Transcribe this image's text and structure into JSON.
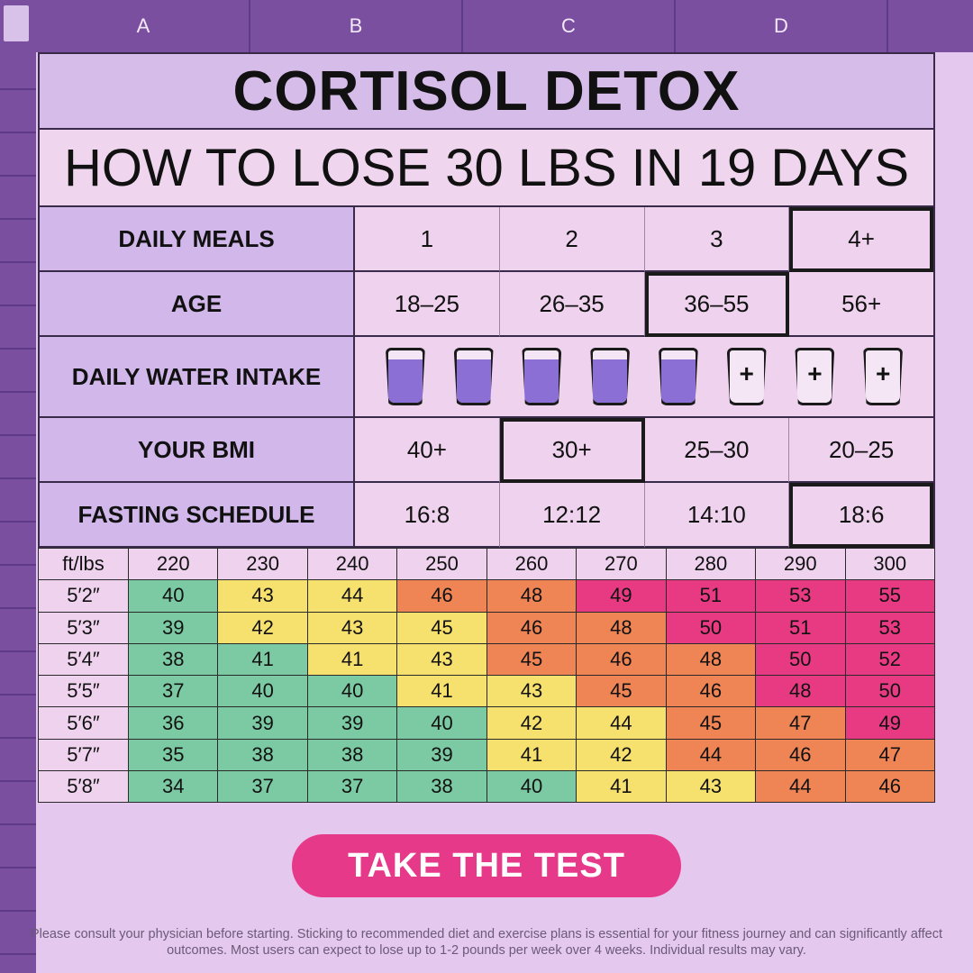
{
  "spreadsheet": {
    "columns": [
      "A",
      "B",
      "C",
      "D"
    ]
  },
  "header": {
    "title": "CORTISOL DETOX",
    "subtitle": "HOW TO LOSE 30 LBS IN 19 DAYS"
  },
  "info_rows": [
    {
      "label": "DAILY MEALS",
      "options": [
        "1",
        "2",
        "3",
        "4+"
      ],
      "selected_index": 3
    },
    {
      "label": "AGE",
      "options": [
        "18–25",
        "26–35",
        "36–55",
        "56+"
      ],
      "selected_index": 2
    },
    {
      "label": "DAILY WATER INTAKE",
      "glasses_filled": 5,
      "glasses_empty": 3,
      "empty_symbol": "+"
    },
    {
      "label": "YOUR BMI",
      "options": [
        "40+",
        "30+",
        "25–30",
        "20–25"
      ],
      "selected_index": 1
    },
    {
      "label": "FASTING SCHEDULE",
      "options": [
        "16:8",
        "12:12",
        "14:10",
        "18:6"
      ],
      "selected_index": 3
    }
  ],
  "bmi_table": {
    "corner": "ft/lbs",
    "weights": [
      "220",
      "230",
      "240",
      "250",
      "260",
      "270",
      "280",
      "290",
      "300"
    ],
    "rows": [
      {
        "height": "5′2″",
        "values": [
          "40",
          "43",
          "44",
          "46",
          "48",
          "49",
          "51",
          "53",
          "55"
        ],
        "colors": [
          "g",
          "y",
          "y",
          "o",
          "o",
          "p",
          "p",
          "p",
          "p"
        ]
      },
      {
        "height": "5′3″",
        "values": [
          "39",
          "42",
          "43",
          "45",
          "46",
          "48",
          "50",
          "51",
          "53"
        ],
        "colors": [
          "g",
          "y",
          "y",
          "y",
          "o",
          "o",
          "p",
          "p",
          "p"
        ]
      },
      {
        "height": "5′4″",
        "values": [
          "38",
          "41",
          "41",
          "43",
          "45",
          "46",
          "48",
          "50",
          "52"
        ],
        "colors": [
          "g",
          "g",
          "y",
          "y",
          "o",
          "o",
          "o",
          "p",
          "p"
        ]
      },
      {
        "height": "5′5″",
        "values": [
          "37",
          "40",
          "40",
          "41",
          "43",
          "45",
          "46",
          "48",
          "50"
        ],
        "colors": [
          "g",
          "g",
          "g",
          "y",
          "y",
          "o",
          "o",
          "p",
          "p"
        ]
      },
      {
        "height": "5′6″",
        "values": [
          "36",
          "39",
          "39",
          "40",
          "42",
          "44",
          "45",
          "47",
          "49"
        ],
        "colors": [
          "g",
          "g",
          "g",
          "g",
          "y",
          "y",
          "o",
          "o",
          "p"
        ]
      },
      {
        "height": "5′7″",
        "values": [
          "35",
          "38",
          "38",
          "39",
          "41",
          "42",
          "44",
          "46",
          "47"
        ],
        "colors": [
          "g",
          "g",
          "g",
          "g",
          "y",
          "y",
          "o",
          "o",
          "o"
        ]
      },
      {
        "height": "5′8″",
        "values": [
          "34",
          "37",
          "37",
          "38",
          "40",
          "41",
          "43",
          "44",
          "46"
        ],
        "colors": [
          "g",
          "g",
          "g",
          "g",
          "g",
          "y",
          "y",
          "o",
          "o"
        ]
      }
    ],
    "palette": {
      "g": "#7ccaa4",
      "y": "#f6e06e",
      "o": "#ef8455",
      "p": "#e73a83"
    }
  },
  "cta": {
    "label": "TAKE THE TEST"
  },
  "disclaimer": "Please consult your physician before starting. Sticking to recommended diet and exercise plans is essential for your fitness journey and can significantly affect outcomes. Most users can expect to lose up to 1-2 pounds per week over 4 weeks. Individual results may vary."
}
